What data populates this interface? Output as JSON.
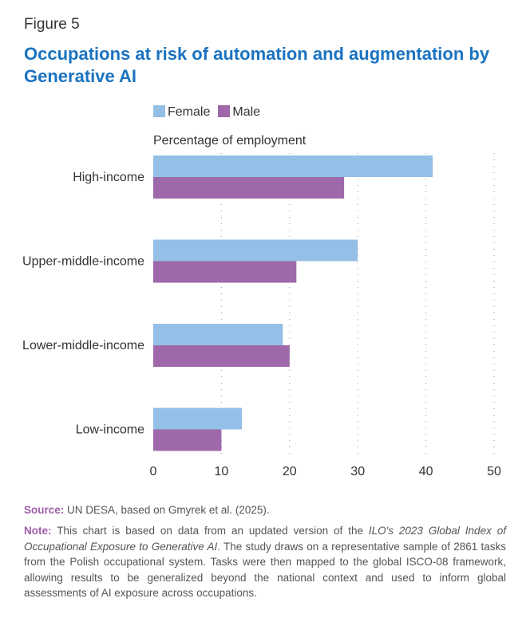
{
  "figure_label": "Figure 5",
  "title": "Occupations at risk of automation and augmentation by Generative AI",
  "source": {
    "label": "Source:",
    "text": "UN DESA, based on Gmyrek et al. (2025)."
  },
  "note": {
    "label": "Note:",
    "text_1": "This chart is based on data from an updated version of the ",
    "italic_1": "ILO's 2023 Global Index of Occupational Exposure to Generative AI",
    "text_2": ". The study draws on a representative sample of 2861 tasks from the Polish occupational system. Tasks were then mapped to the global ISCO-08 framework, allowing results to be generalized beyond the national context and used to inform global assessments of AI exposure across occupations."
  },
  "chart_data": {
    "type": "bar",
    "orientation": "horizontal",
    "categories": [
      "High-income",
      "Upper-middle-income",
      "Lower-middle-income",
      "Low-income"
    ],
    "series": [
      {
        "name": "Female",
        "color": "#94bfe6",
        "values": [
          41,
          30,
          19,
          13
        ]
      },
      {
        "name": "Male",
        "color": "#9e68aa",
        "values": [
          28,
          21,
          20,
          10
        ]
      }
    ],
    "xlabel": "Percentage of employment",
    "xlim": [
      0,
      50
    ],
    "xticks": [
      "0",
      "10",
      "20",
      "30",
      "40",
      "50"
    ],
    "grid": "vertical dotted",
    "legend": "top"
  }
}
